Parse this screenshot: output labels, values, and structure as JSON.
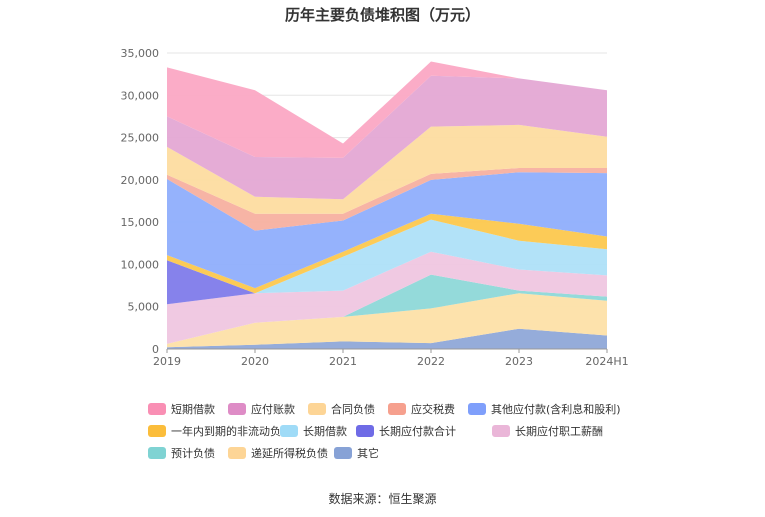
{
  "chart_data": {
    "type": "area",
    "title": "历年主要负债堆积图（万元）",
    "categories": [
      "2019",
      "2020",
      "2021",
      "2022",
      "2023",
      "2024H1"
    ],
    "y_ticks": [
      "0",
      "5,000",
      "10,000",
      "15,000",
      "20,000",
      "25,000",
      "30,000",
      "35,000"
    ],
    "ylim": [
      0,
      35000
    ],
    "stacked": true,
    "series": [
      {
        "name": "其它",
        "color": "#8fa8d8",
        "values": [
          200,
          500,
          900,
          700,
          2400,
          1600
        ]
      },
      {
        "name": "递延所得税负债",
        "color": "#fde0a8",
        "values": [
          400,
          2600,
          2900,
          4100,
          4200,
          4100
        ]
      },
      {
        "name": "预计负债",
        "color": "#8ed8d8",
        "values": [
          0,
          0,
          0,
          4000,
          300,
          500
        ]
      },
      {
        "name": "长期应付职工薪酬",
        "color": "#efc6e0",
        "values": [
          4700,
          3500,
          3100,
          2700,
          2500,
          2500
        ]
      },
      {
        "name": "长期应付款合计",
        "color": "#7f7bea",
        "values": [
          5200,
          0,
          0,
          0,
          0,
          0
        ]
      },
      {
        "name": "长期借款",
        "color": "#aee0f8",
        "values": [
          0,
          0,
          4000,
          3800,
          3400,
          3100
        ]
      },
      {
        "name": "一年内到期的非流动负债",
        "color": "#fcc84e",
        "values": [
          600,
          600,
          600,
          700,
          2000,
          1500
        ]
      },
      {
        "name": "其他应付款(含利息和股利)",
        "color": "#8faefc",
        "values": [
          9000,
          6800,
          3700,
          4000,
          6100,
          7500
        ]
      },
      {
        "name": "应交税费",
        "color": "#f7b0a0",
        "values": [
          500,
          2000,
          800,
          700,
          500,
          600
        ]
      },
      {
        "name": "合同负债",
        "color": "#fddca0",
        "values": [
          3300,
          2000,
          1700,
          5600,
          5100,
          3700
        ]
      },
      {
        "name": "应付账款",
        "color": "#e4a8d4",
        "values": [
          3600,
          4700,
          4900,
          6000,
          5500,
          5500
        ]
      },
      {
        "name": "短期借款",
        "color": "#fba8c4",
        "values": [
          5800,
          7900,
          1700,
          1700,
          0,
          0
        ]
      }
    ],
    "legend": [
      {
        "name": "短期借款",
        "color": "#f98fb4"
      },
      {
        "name": "应付账款",
        "color": "#de8cc6"
      },
      {
        "name": "合同负债",
        "color": "#fdd596"
      },
      {
        "name": "应交税费",
        "color": "#f6a08e"
      },
      {
        "name": "其他应付款(含利息和股利)",
        "color": "#7f9ffb"
      },
      {
        "name": "一年内到期的非流动负债",
        "color": "#fbbd3b"
      },
      {
        "name": "长期借款",
        "color": "#9fdbf7"
      },
      {
        "name": "长期应付款合计",
        "color": "#6f6be6"
      },
      {
        "name": "长期应付职工薪酬",
        "color": "#eab6d8"
      },
      {
        "name": "预计负债",
        "color": "#7fd3d3"
      },
      {
        "name": "递延所得税负债",
        "color": "#fdd596"
      },
      {
        "name": "其它",
        "color": "#87a2d6"
      }
    ],
    "source": "数据来源：恒生聚源",
    "grid": true,
    "legend_position": "bottom"
  }
}
